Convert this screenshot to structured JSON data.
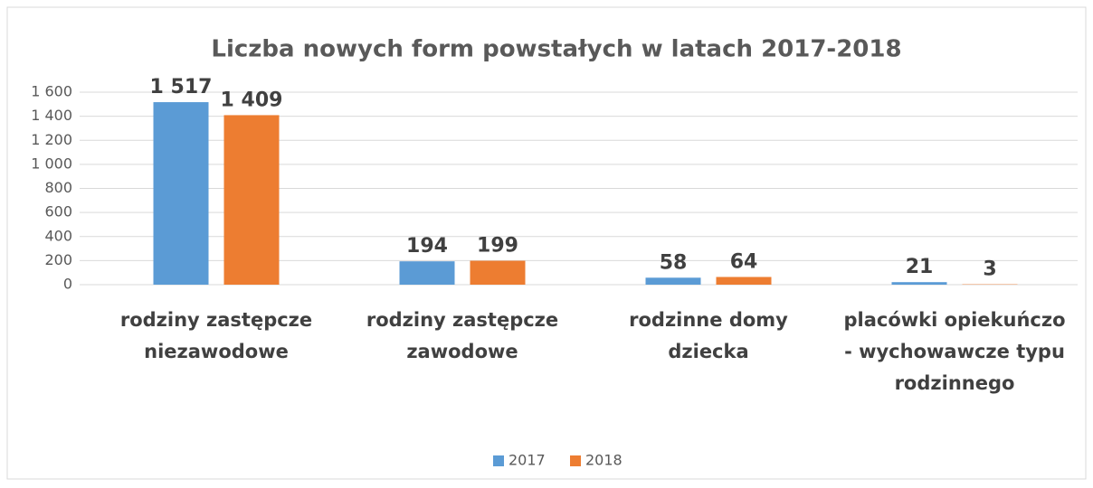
{
  "chart_data": {
    "type": "bar",
    "title": "Liczba nowych form powstałych w latach 2017-2018",
    "categories": [
      "rodziny zastępcze niezawodowe",
      "rodziny zastępcze zawodowe",
      "rodzinne domy dziecka",
      "placówki opiekuńczo - wychowawcze typu rodzinnego"
    ],
    "series": [
      {
        "name": "2017",
        "color": "#5b9bd5",
        "values": [
          1517,
          194,
          58,
          21
        ],
        "value_labels": [
          "1 517",
          "194",
          "58",
          "21"
        ]
      },
      {
        "name": "2018",
        "color": "#ed7d31",
        "values": [
          1409,
          199,
          64,
          3
        ],
        "value_labels": [
          "1 409",
          "199",
          "64",
          "3"
        ]
      }
    ],
    "ylim": [
      0,
      1600
    ],
    "yticks": [
      0,
      200,
      400,
      600,
      800,
      {
        "value": 1000,
        "label": "1 000"
      },
      {
        "value": 1200,
        "label": "1 200"
      },
      {
        "value": 1400,
        "label": "1 400"
      },
      {
        "value": 1600,
        "label": "1 600"
      }
    ],
    "grid": true,
    "legend": "bottom"
  }
}
